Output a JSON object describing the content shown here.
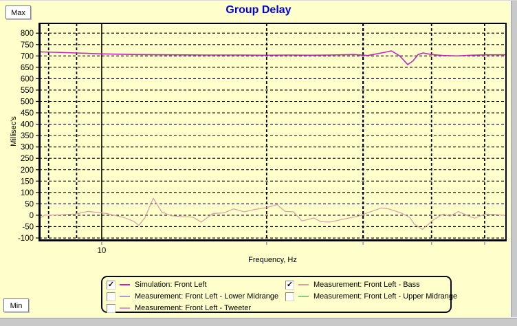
{
  "window": {
    "max_button": "Max",
    "min_button": "Min",
    "background": "#FFFFCC"
  },
  "chart_data": {
    "type": "line",
    "title": "Group Delay",
    "xlabel": "Frequency, Hz",
    "ylabel": "Millisec's",
    "x_scale": "log",
    "x_range": [
      7.69,
      54.7
    ],
    "ylim": [
      -112,
      843
    ],
    "y_tick_min": -100,
    "y_tick_max": 800,
    "y_tick_step": 50,
    "y_tick_labels": [
      "800",
      "750",
      "700",
      "650",
      "600",
      "550",
      "500",
      "450",
      "400",
      "350",
      "300",
      "250",
      "200",
      "150",
      "100",
      "50",
      "0",
      "-50",
      "-100"
    ],
    "x_gridlines": [
      8,
      9,
      10,
      20,
      30,
      40,
      50
    ],
    "x_tick_labels": [
      {
        "value": 10,
        "label": "10"
      }
    ],
    "grid": "dashed",
    "legend_position": "bottom",
    "series": [
      {
        "name": "Simulation: Front Left",
        "color": "#C126C1",
        "width": 1.6,
        "points": [
          [
            7.69,
            718
          ],
          [
            8.2,
            716
          ],
          [
            9.0,
            713
          ],
          [
            10,
            709
          ],
          [
            11.6,
            706
          ],
          [
            13.4,
            705
          ],
          [
            15.5,
            704
          ],
          [
            18,
            704
          ],
          [
            20,
            703
          ],
          [
            22,
            704
          ],
          [
            24,
            703
          ],
          [
            26,
            704
          ],
          [
            28.9,
            706
          ],
          [
            30.6,
            702
          ],
          [
            32.7,
            715
          ],
          [
            33.8,
            722
          ],
          [
            35.0,
            700
          ],
          [
            36.2,
            662
          ],
          [
            37.0,
            678
          ],
          [
            37.8,
            706
          ],
          [
            38.6,
            713
          ],
          [
            40,
            706
          ],
          [
            42,
            702
          ],
          [
            44.5,
            700
          ],
          [
            47.2,
            703
          ],
          [
            50.7,
            705
          ],
          [
            54.7,
            705
          ]
        ]
      },
      {
        "name": "Measurement: Front Left - Bass",
        "color": "#DBA4A4",
        "width": 1.3,
        "points": [
          [
            7.69,
            -15
          ],
          [
            7.86,
            0
          ],
          [
            8.43,
            2
          ],
          [
            8.96,
            5
          ],
          [
            9.44,
            17
          ],
          [
            10.2,
            8
          ],
          [
            10.97,
            -10
          ],
          [
            11.45,
            -27
          ],
          [
            11.69,
            -45
          ],
          [
            12.0,
            -10
          ],
          [
            12.42,
            75
          ],
          [
            12.86,
            15
          ],
          [
            13.36,
            -2
          ],
          [
            14.0,
            -6
          ],
          [
            14.65,
            -8
          ],
          [
            15.2,
            -30
          ],
          [
            15.97,
            8
          ],
          [
            16.68,
            10
          ],
          [
            17.42,
            28
          ],
          [
            18.2,
            15
          ],
          [
            18.98,
            25
          ],
          [
            20,
            33
          ],
          [
            20.9,
            47
          ],
          [
            21.6,
            17
          ],
          [
            22.4,
            15
          ],
          [
            23.2,
            -25
          ],
          [
            24.4,
            -12
          ],
          [
            25.1,
            -28
          ],
          [
            26.1,
            -30
          ],
          [
            28.0,
            -14
          ],
          [
            29.4,
            -4
          ],
          [
            31.1,
            17
          ],
          [
            32.4,
            32
          ],
          [
            33.4,
            28
          ],
          [
            35.2,
            10
          ],
          [
            36.5,
            -10
          ],
          [
            37.2,
            -39
          ],
          [
            38.5,
            -62
          ],
          [
            40.4,
            -19
          ],
          [
            42.0,
            5
          ],
          [
            43.2,
            -4
          ],
          [
            44.8,
            16
          ],
          [
            47.2,
            -8
          ],
          [
            48.0,
            -13
          ],
          [
            49.8,
            3
          ],
          [
            51.9,
            4
          ],
          [
            54.7,
            -1
          ]
        ]
      }
    ]
  },
  "legend": {
    "items": [
      {
        "label": "Simulation: Front Left",
        "color": "#C126C1",
        "checked": true
      },
      {
        "label": "Measurement: Front Left - Bass",
        "color": "#E09C9C",
        "checked": true
      },
      {
        "label": "Measurement: Front Left - Lower Midrange",
        "color": "#9F9FD2",
        "checked": false
      },
      {
        "label": "Measurement: Front Left - Upper Midrange",
        "color": "#86CC86",
        "checked": false
      },
      {
        "label": "Measurement: Front Left - Tweeter",
        "color": "#E08CE0",
        "checked": false
      }
    ],
    "columns": [
      [
        0,
        2,
        4
      ],
      [
        1,
        3
      ]
    ],
    "check_glyph": "✓"
  }
}
